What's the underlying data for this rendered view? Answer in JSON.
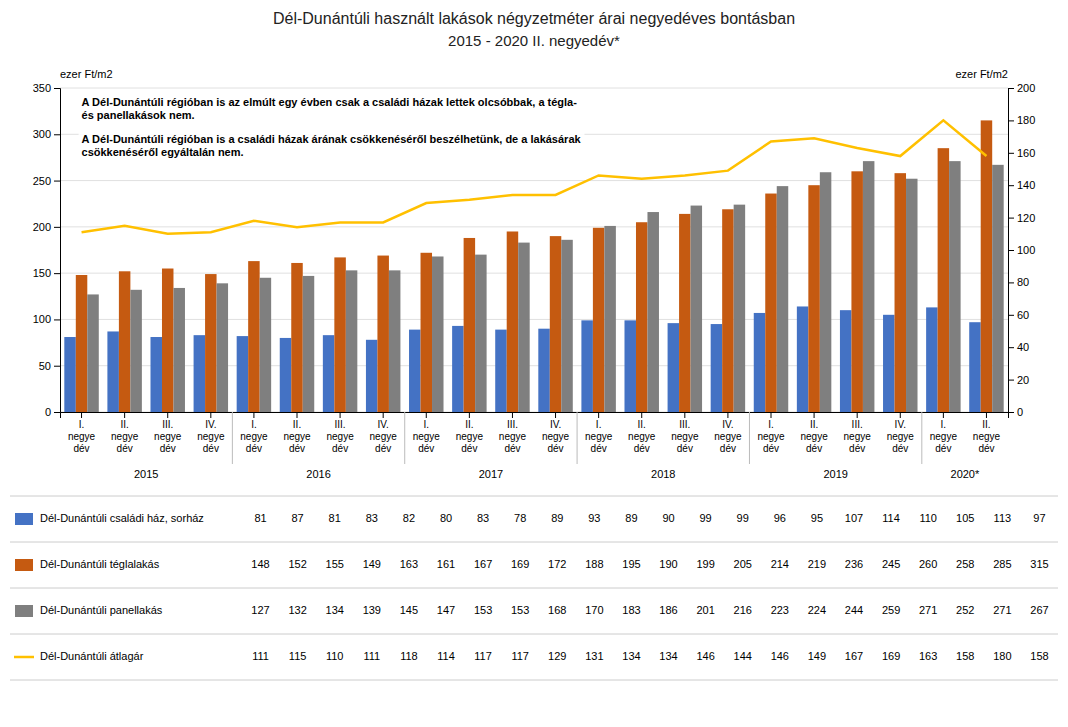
{
  "chart_data": {
    "type": "bar",
    "title": "Dél-Dunántúli használt lakások négyzetméter árai negyedéves bontásban",
    "subtitle": "2015 - 2020 II. negyedév*",
    "ylabel": "ezer Ft/m2",
    "y2label": "ezer Ft/m2",
    "annotations": [
      "A Dél-Dunántúli régióban is az elmúlt egy évben csak a családi házak lettek olcsóbbak, a tégla-\nés panellakások nem.",
      "A Dél-Dunántúli régióban is a családi házak árának csökkenéséről beszélhetünk, de a lakásárak\ncsökkenéséről egyáltalán nem."
    ],
    "categories": [
      "I.\nnegye\ndév",
      "II.\nnegye\ndév",
      "III.\nnegye\ndév",
      "IV.\nnegye\ndév",
      "I.\nnegye\ndév",
      "II.\nnegye\ndév",
      "III.\nnegye\ndév",
      "IV.\nnegye\ndév",
      "I.\nnegye\ndév",
      "II.\nnegye\ndév",
      "III.\nnegye\ndév",
      "IV.\nnegye\ndév",
      "I.\nnegye\ndév",
      "II.\nnegye\ndév",
      "III.\nnegye\ndév",
      "IV.\nnegye\ndév",
      "I.\nnegye\ndév",
      "II.\nnegye\ndév",
      "III.\nnegye\ndév",
      "IV.\nnegye\ndév",
      "I.\nnegye\ndév",
      "II.\nnegye\ndév"
    ],
    "category_groups": [
      {
        "label": "2015",
        "count": 4
      },
      {
        "label": "2016",
        "count": 4
      },
      {
        "label": "2017",
        "count": 4
      },
      {
        "label": "2018",
        "count": 4
      },
      {
        "label": "2019",
        "count": 4
      },
      {
        "label": "2020*",
        "count": 2
      }
    ],
    "series": [
      {
        "name": "Dél-Dunántúli családi ház, sorház",
        "color": "#4472c4",
        "values": [
          81,
          87,
          81,
          83,
          82,
          80,
          83,
          78,
          89,
          93,
          89,
          90,
          99,
          99,
          96,
          95,
          107,
          114,
          110,
          105,
          113,
          97
        ]
      },
      {
        "name": "Dél-Dunántúli téglalakás",
        "color": "#c55a11",
        "values": [
          148,
          152,
          155,
          149,
          163,
          161,
          167,
          169,
          172,
          188,
          195,
          190,
          199,
          205,
          214,
          219,
          236,
          245,
          260,
          258,
          285,
          315
        ]
      },
      {
        "name": "Dél-Dunántúli panellakás",
        "color": "#7f7f7f",
        "values": [
          127,
          132,
          134,
          139,
          145,
          147,
          153,
          153,
          168,
          170,
          183,
          186,
          201,
          216,
          223,
          224,
          244,
          259,
          271,
          252,
          271,
          267
        ]
      },
      {
        "name": "Dél-Dunántúli átlagár",
        "type": "line",
        "axis": "y2",
        "color": "#ffc000",
        "values": [
          111,
          115,
          110,
          111,
          118,
          114,
          117,
          117,
          129,
          131,
          134,
          134,
          146,
          144,
          146,
          149,
          167,
          169,
          163,
          158,
          180,
          158
        ]
      }
    ],
    "ylim": [
      0,
      350
    ],
    "yticks": [
      0,
      50,
      100,
      150,
      200,
      250,
      300,
      350
    ],
    "y2lim": [
      0,
      200
    ],
    "y2ticks": [
      0,
      20,
      40,
      60,
      80,
      100,
      120,
      140,
      160,
      180,
      200
    ],
    "grid": true,
    "legend": "bottom",
    "data_labels": true
  }
}
